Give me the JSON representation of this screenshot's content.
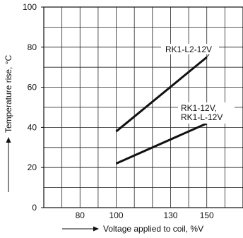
{
  "chart_data": {
    "type": "line",
    "xlabel": "Voltage applied to coil, %V",
    "ylabel": "Temperature rise, °C",
    "xlim": [
      60,
      170
    ],
    "ylim": [
      0,
      100
    ],
    "x_ticks": [
      80,
      100,
      130,
      150
    ],
    "y_ticks": [
      0,
      20,
      40,
      60,
      80,
      100
    ],
    "grid": true,
    "series": [
      {
        "name": "RK1-L2-12V",
        "x": [
          100,
          150
        ],
        "y": [
          38,
          75
        ]
      },
      {
        "name": "RK1-12V,\nRK1-L-12V",
        "x": [
          100,
          150
        ],
        "y": [
          22,
          42
        ]
      }
    ],
    "annotations": [
      "RK1-L2-12V",
      "RK1-12V,",
      "RK1-L-12V"
    ]
  }
}
